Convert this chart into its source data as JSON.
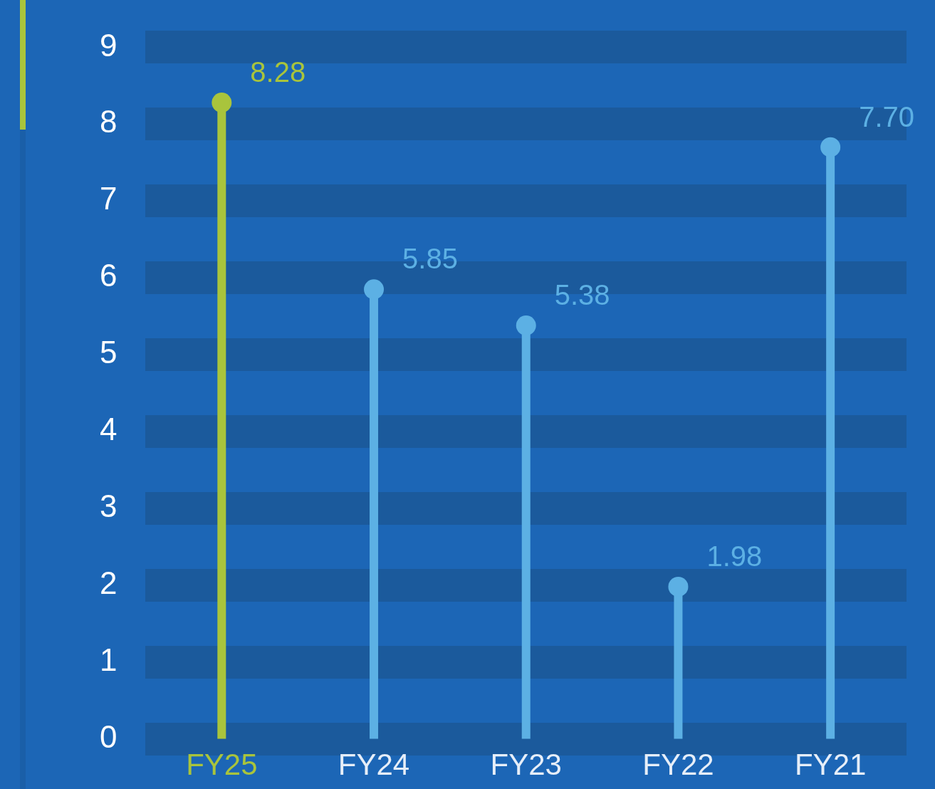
{
  "chart_data": {
    "type": "lollipop",
    "categories": [
      "FY25",
      "FY24",
      "FY23",
      "FY22",
      "FY21"
    ],
    "values": [
      8.28,
      5.85,
      5.38,
      1.98,
      7.7
    ],
    "value_labels": [
      "8.28",
      "5.85",
      "5.38",
      "1.98",
      "7.70"
    ],
    "colors": [
      "#a9c43c",
      "#5cb0e4",
      "#5cb0e4",
      "#5cb0e4",
      "#5cb0e4"
    ],
    "ylim": [
      0,
      9
    ],
    "yticks": [
      0,
      1,
      2,
      3,
      4,
      5,
      6,
      7,
      8,
      9
    ],
    "grid": "y",
    "legend": false
  }
}
